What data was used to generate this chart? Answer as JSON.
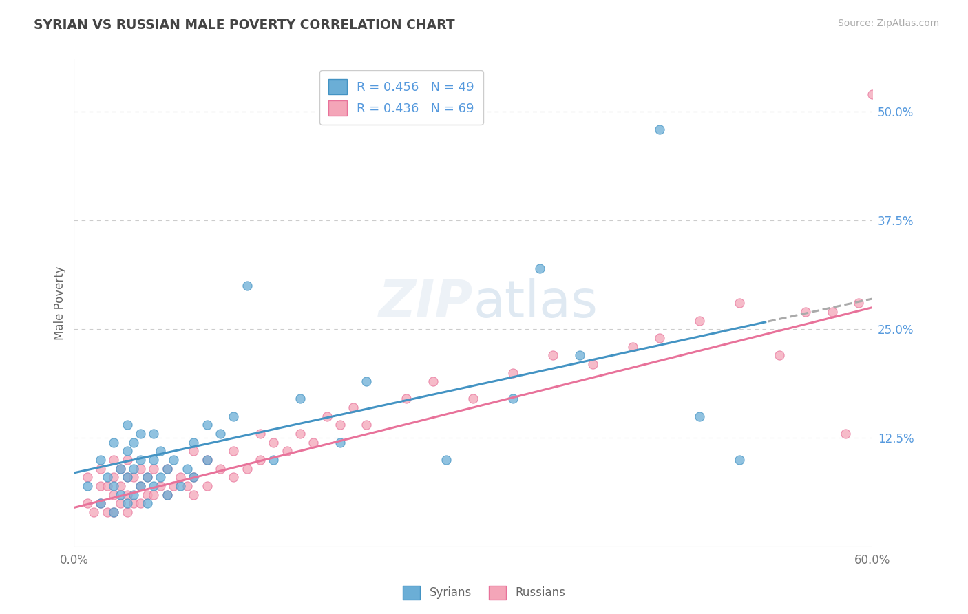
{
  "title": "SYRIAN VS RUSSIAN MALE POVERTY CORRELATION CHART",
  "source": "Source: ZipAtlas.com",
  "ylabel": "Male Poverty",
  "xlim": [
    0.0,
    0.6
  ],
  "ylim": [
    0.0,
    0.56
  ],
  "right_ytick_labels": [
    "50.0%",
    "37.5%",
    "25.0%",
    "12.5%"
  ],
  "right_ytick_vals": [
    0.5,
    0.375,
    0.25,
    0.125
  ],
  "hline_vals": [
    0.5,
    0.375,
    0.25,
    0.125
  ],
  "watermark": "ZIPatlas",
  "syrians_R": 0.456,
  "syrians_N": 49,
  "russians_R": 0.436,
  "russians_N": 69,
  "color_syrians": "#6baed6",
  "color_russians": "#f4a5b8",
  "color_edge_syrians": "#4393c3",
  "color_edge_russians": "#e8729a",
  "color_line_syrians": "#4393c3",
  "color_line_russians": "#e8729a",
  "color_line_dashed": "#aaaaaa",
  "title_color": "#444444",
  "axis_label_color": "#666666",
  "tick_color_right": "#5599dd",
  "grid_color": "#cccccc",
  "background_color": "#ffffff",
  "line_s_x0": 0.0,
  "line_s_y0": 0.085,
  "line_s_x1": 0.6,
  "line_s_y1": 0.285,
  "line_r_x0": 0.0,
  "line_r_y0": 0.045,
  "line_r_x1": 0.6,
  "line_r_y1": 0.275,
  "line_s_solid_end": 0.52,
  "syrians_x": [
    0.01,
    0.02,
    0.02,
    0.025,
    0.03,
    0.03,
    0.03,
    0.035,
    0.035,
    0.04,
    0.04,
    0.04,
    0.04,
    0.045,
    0.045,
    0.045,
    0.05,
    0.05,
    0.05,
    0.055,
    0.055,
    0.06,
    0.06,
    0.06,
    0.065,
    0.065,
    0.07,
    0.07,
    0.075,
    0.08,
    0.085,
    0.09,
    0.09,
    0.1,
    0.1,
    0.11,
    0.12,
    0.13,
    0.15,
    0.17,
    0.2,
    0.22,
    0.28,
    0.33,
    0.35,
    0.38,
    0.44,
    0.47,
    0.5
  ],
  "syrians_y": [
    0.07,
    0.05,
    0.1,
    0.08,
    0.04,
    0.07,
    0.12,
    0.06,
    0.09,
    0.05,
    0.08,
    0.11,
    0.14,
    0.06,
    0.09,
    0.12,
    0.07,
    0.1,
    0.13,
    0.05,
    0.08,
    0.07,
    0.1,
    0.13,
    0.08,
    0.11,
    0.06,
    0.09,
    0.1,
    0.07,
    0.09,
    0.08,
    0.12,
    0.1,
    0.14,
    0.13,
    0.15,
    0.3,
    0.1,
    0.17,
    0.12,
    0.19,
    0.1,
    0.17,
    0.32,
    0.22,
    0.48,
    0.15,
    0.1
  ],
  "russians_x": [
    0.01,
    0.01,
    0.015,
    0.02,
    0.02,
    0.02,
    0.025,
    0.025,
    0.03,
    0.03,
    0.03,
    0.03,
    0.035,
    0.035,
    0.035,
    0.04,
    0.04,
    0.04,
    0.04,
    0.045,
    0.045,
    0.05,
    0.05,
    0.05,
    0.055,
    0.055,
    0.06,
    0.06,
    0.065,
    0.07,
    0.07,
    0.075,
    0.08,
    0.085,
    0.09,
    0.09,
    0.09,
    0.1,
    0.1,
    0.11,
    0.12,
    0.12,
    0.13,
    0.14,
    0.14,
    0.15,
    0.16,
    0.17,
    0.18,
    0.19,
    0.2,
    0.21,
    0.22,
    0.25,
    0.27,
    0.3,
    0.33,
    0.36,
    0.39,
    0.42,
    0.44,
    0.47,
    0.5,
    0.53,
    0.55,
    0.57,
    0.58,
    0.59,
    0.6
  ],
  "russians_y": [
    0.05,
    0.08,
    0.04,
    0.05,
    0.07,
    0.09,
    0.04,
    0.07,
    0.04,
    0.06,
    0.08,
    0.1,
    0.05,
    0.07,
    0.09,
    0.04,
    0.06,
    0.08,
    0.1,
    0.05,
    0.08,
    0.05,
    0.07,
    0.09,
    0.06,
    0.08,
    0.06,
    0.09,
    0.07,
    0.06,
    0.09,
    0.07,
    0.08,
    0.07,
    0.06,
    0.08,
    0.11,
    0.07,
    0.1,
    0.09,
    0.08,
    0.11,
    0.09,
    0.1,
    0.13,
    0.12,
    0.11,
    0.13,
    0.12,
    0.15,
    0.14,
    0.16,
    0.14,
    0.17,
    0.19,
    0.17,
    0.2,
    0.22,
    0.21,
    0.23,
    0.24,
    0.26,
    0.28,
    0.22,
    0.27,
    0.27,
    0.13,
    0.28,
    0.52
  ]
}
